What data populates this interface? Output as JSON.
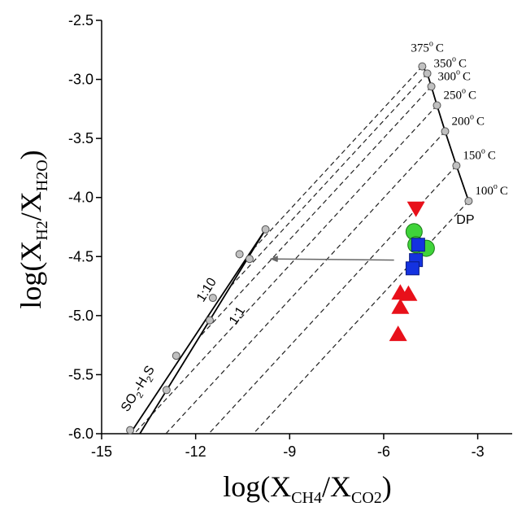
{
  "chart_data": {
    "type": "scatter",
    "xlabel": [
      "log(X",
      "CH4",
      "/X",
      "CO2",
      ")"
    ],
    "ylabel": [
      "log(X",
      "H2",
      "/X",
      "H2O",
      ")"
    ],
    "xlim": [
      -15,
      -1.9
    ],
    "ylim": [
      -6.0,
      -2.5
    ],
    "xticks": [
      -15,
      -12,
      -9,
      -6,
      -3
    ],
    "yticks": [
      -2.5,
      {
        "value": -3.0,
        "label": "-3.0"
      },
      -3.5,
      {
        "value": -4.0,
        "label": "-4.0"
      },
      -4.5,
      {
        "value": -5.0,
        "label": "-5.0"
      },
      -5.5,
      {
        "value": -6.0,
        "label": "-6.0"
      }
    ],
    "series": [
      {
        "marker": "triangle-down",
        "color": "#e8101a",
        "x": [
          -4.97
        ],
        "y": [
          -4.09
        ]
      },
      {
        "marker": "triangle-up",
        "color": "#e8101a",
        "x": [
          -5.47,
          -5.21,
          -5.47,
          -5.54
        ],
        "y": [
          -4.81,
          -4.82,
          -4.93,
          -5.16
        ]
      },
      {
        "marker": "circle",
        "color": "#3fd33a",
        "x": [
          -5.03,
          -4.97,
          -4.64
        ],
        "y": [
          -4.29,
          -4.4,
          -4.43
        ]
      },
      {
        "marker": "square",
        "color": "#1432e0",
        "x": [
          -4.9,
          -4.97,
          -5.08
        ],
        "y": [
          -4.4,
          -4.53,
          -4.6
        ]
      },
      {
        "marker": "small-circle",
        "color": "#c0c0c0",
        "line": true,
        "x": [
          -4.77,
          -4.61,
          -4.48,
          -4.3,
          -4.04,
          -3.68,
          -3.29
        ],
        "y": [
          -2.89,
          -2.95,
          -3.06,
          -3.22,
          -3.44,
          -3.73,
          -4.03
        ]
      },
      {
        "marker": "small-circle",
        "color": "#c0c0c0",
        "x": [
          -14.09,
          -12.62,
          -11.45,
          -10.6,
          -9.77,
          -12.93,
          -11.55,
          -10.28
        ],
        "y": [
          -5.97,
          -5.34,
          -4.85,
          -4.48,
          -4.27,
          -5.63,
          -5.04,
          -4.52
        ]
      }
    ],
    "lines": [
      {
        "style": "solid",
        "x": [
          -14.09,
          -9.77
        ],
        "y": [
          -6.0,
          -4.27
        ]
      },
      {
        "style": "solid",
        "x": [
          -13.78,
          -9.77
        ],
        "y": [
          -6.0,
          -4.27
        ]
      },
      {
        "style": "dashed",
        "x": [
          -4.77,
          -10.1
        ],
        "y": [
          -2.89,
          -4.42
        ]
      },
      {
        "style": "dashed",
        "x": [
          -4.61,
          -10.91
        ],
        "y": [
          -2.95,
          -4.76
        ]
      },
      {
        "style": "dashed",
        "x": [
          -4.48,
          -11.87
        ],
        "y": [
          -3.06,
          -5.18
        ]
      },
      {
        "style": "dashed",
        "x": [
          -4.3,
          -13.96
        ],
        "y": [
          -3.22,
          -6.0
        ]
      },
      {
        "style": "dashed",
        "x": [
          -4.04,
          -12.95
        ],
        "y": [
          -3.44,
          -6.0
        ]
      },
      {
        "style": "dashed",
        "x": [
          -3.68,
          -11.58
        ],
        "y": [
          -3.73,
          -6.0
        ]
      },
      {
        "style": "dashed",
        "x": [
          -3.29,
          -10.16
        ],
        "y": [
          -4.03,
          -6.0
        ]
      },
      {
        "style": "arrow",
        "x": [
          -5.67,
          -9.61
        ],
        "y": [
          -4.53,
          -4.52
        ]
      }
    ],
    "temperature_labels": [
      "375",
      "350",
      "300",
      "250",
      "200",
      "150",
      "100"
    ],
    "degree_sign": "o",
    "degree_unit": "C",
    "dp_label": "DP",
    "ratio_labels": [
      "1:10",
      "1:1"
    ],
    "buffer_label": [
      "SO",
      "2",
      "-H",
      "2",
      "S"
    ]
  }
}
